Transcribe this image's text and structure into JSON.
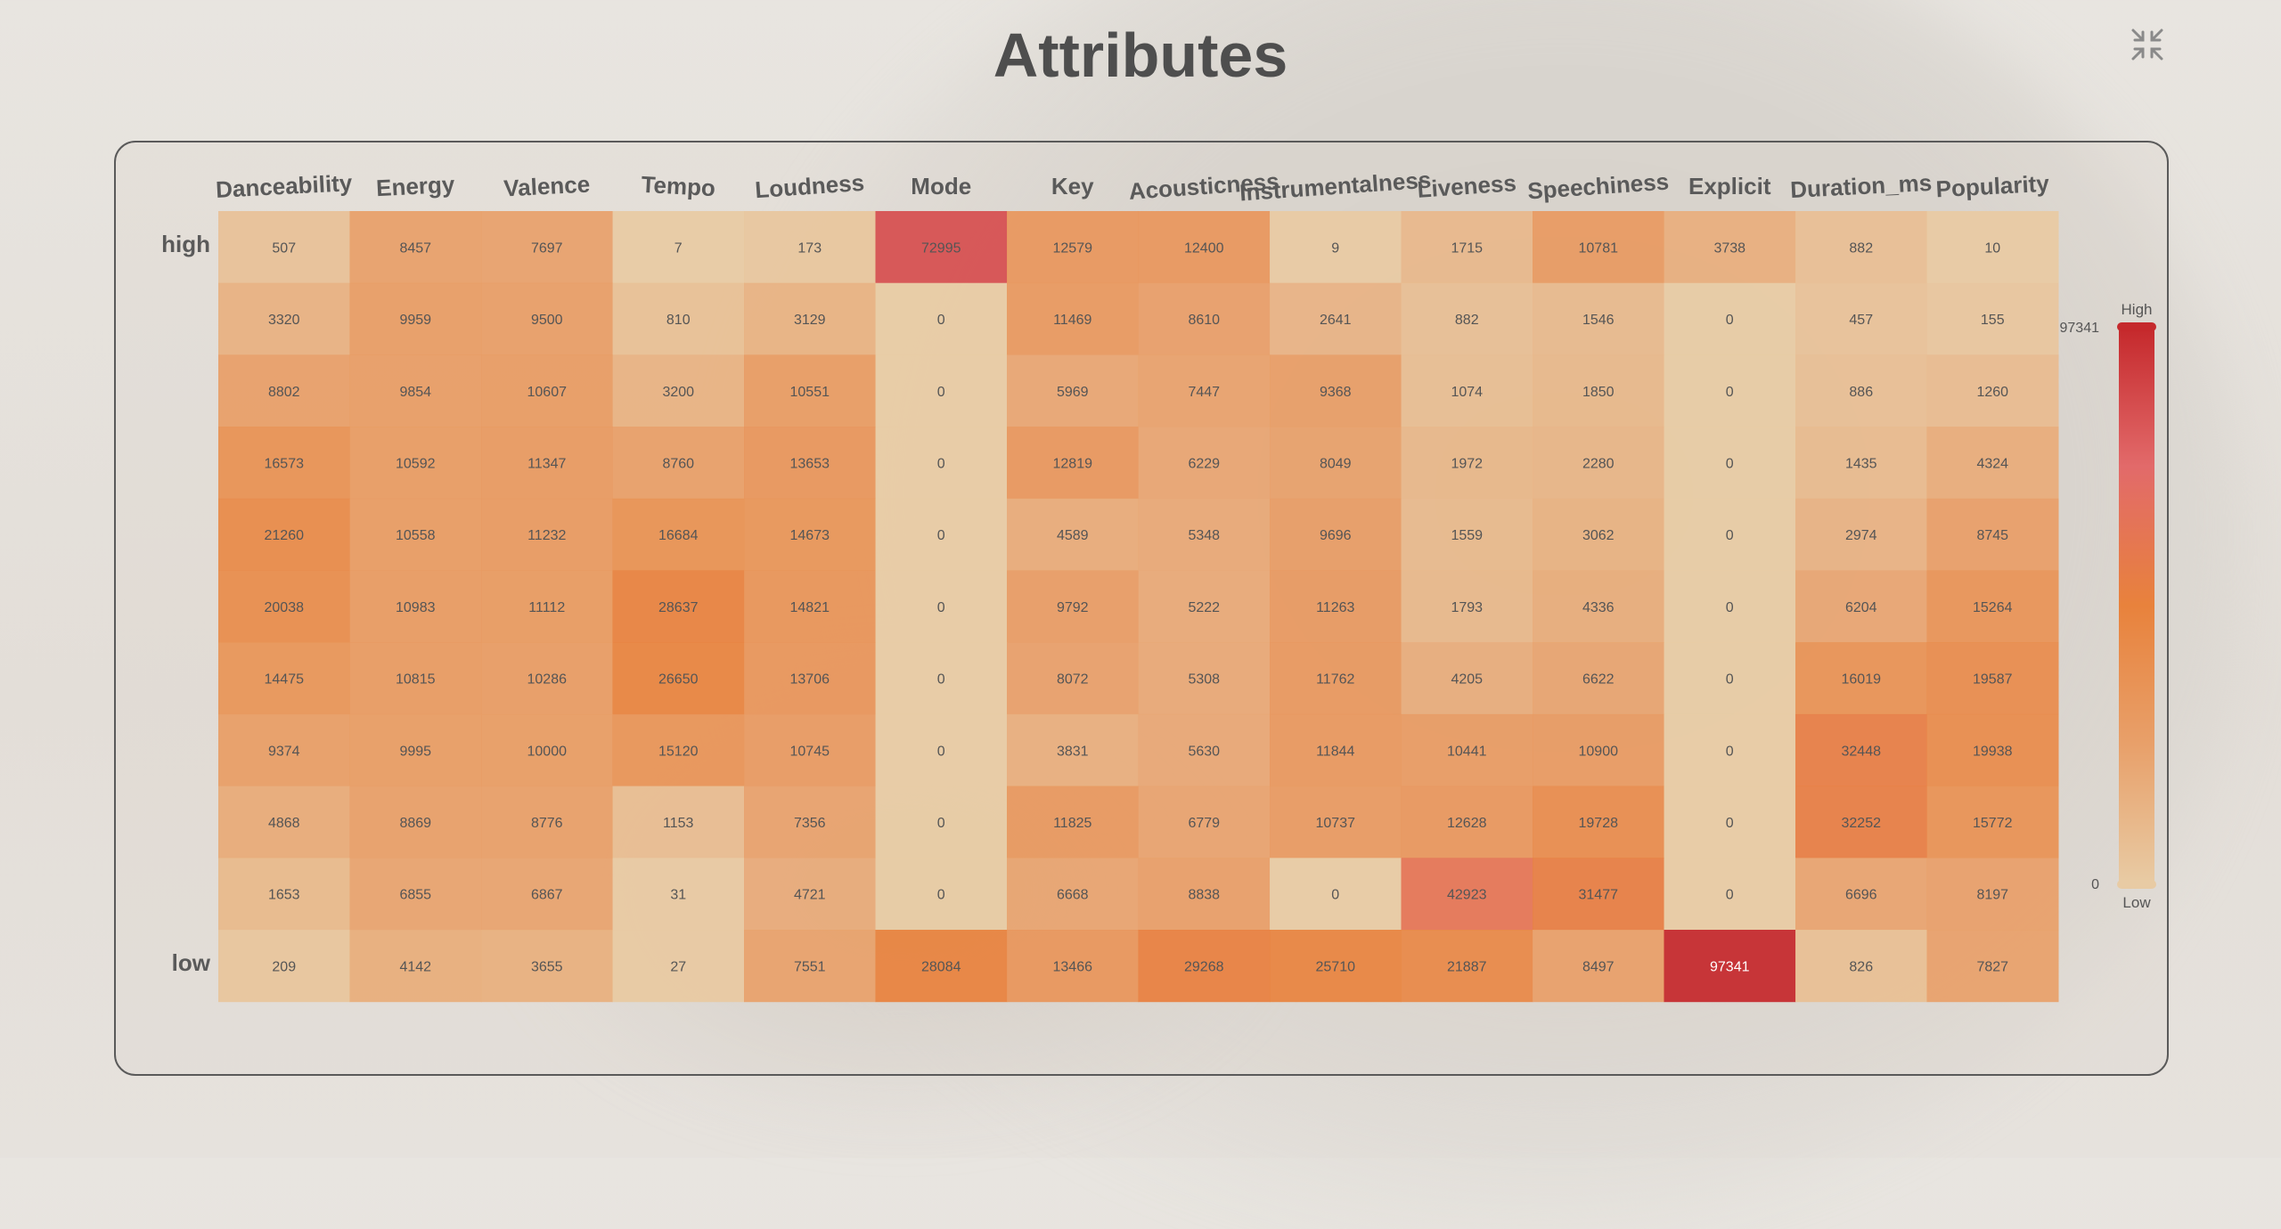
{
  "page": {
    "title": "Attributes"
  },
  "controls": {
    "collapse_icon": "collapse-arrows-icon"
  },
  "chart_data": {
    "type": "heatmap",
    "columns": [
      "Danceability",
      "Energy",
      "Valence",
      "Tempo",
      "Loudness",
      "Mode",
      "Key",
      "Acousticness",
      "Instrumentalness",
      "Liveness",
      "Speechiness",
      "Explicit",
      "Duration_ms",
      "Popularity"
    ],
    "row_labels": {
      "top": "high",
      "bottom": "low"
    },
    "values": [
      [
        507,
        8457,
        7697,
        7,
        173,
        72995,
        12579,
        12400,
        9,
        1715,
        10781,
        3738,
        882,
        10
      ],
      [
        3320,
        9959,
        9500,
        810,
        3129,
        0,
        11469,
        8610,
        2641,
        882,
        1546,
        0,
        457,
        155
      ],
      [
        8802,
        9854,
        10607,
        3200,
        10551,
        0,
        5969,
        7447,
        9368,
        1074,
        1850,
        0,
        886,
        1260
      ],
      [
        16573,
        10592,
        11347,
        8760,
        13653,
        0,
        12819,
        6229,
        8049,
        1972,
        2280,
        0,
        1435,
        4324
      ],
      [
        21260,
        10558,
        11232,
        16684,
        14673,
        0,
        4589,
        5348,
        9696,
        1559,
        3062,
        0,
        2974,
        8745
      ],
      [
        20038,
        10983,
        11112,
        28637,
        14821,
        0,
        9792,
        5222,
        11263,
        1793,
        4336,
        0,
        6204,
        15264
      ],
      [
        14475,
        10815,
        10286,
        26650,
        13706,
        0,
        8072,
        5308,
        11762,
        4205,
        6622,
        0,
        16019,
        19587
      ],
      [
        9374,
        9995,
        10000,
        15120,
        10745,
        0,
        3831,
        5630,
        11844,
        10441,
        10900,
        0,
        32448,
        19938
      ],
      [
        4868,
        8869,
        8776,
        1153,
        7356,
        0,
        11825,
        6779,
        10737,
        12628,
        19728,
        0,
        32252,
        15772
      ],
      [
        1653,
        6855,
        6867,
        31,
        4721,
        0,
        6668,
        8838,
        0,
        42923,
        31477,
        0,
        6696,
        8197
      ],
      [
        209,
        4142,
        3655,
        27,
        7551,
        28084,
        13466,
        29268,
        25710,
        21887,
        8497,
        97341,
        826,
        7827
      ]
    ],
    "color_scale": {
      "min": 0,
      "max": 97341,
      "min_label": "0",
      "max_label": "97341",
      "low_label": "Low",
      "high_label": "High",
      "stops": [
        "#e8cba4",
        "#e8a06a",
        "#e8823c",
        "#e26a6a",
        "#c5292c"
      ]
    },
    "legend_placement": "right",
    "grid": false
  }
}
